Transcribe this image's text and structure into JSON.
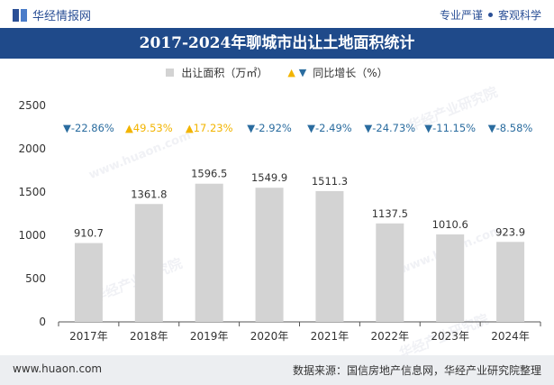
{
  "header": {
    "brand": "华经情报网",
    "tag1": "专业严谨",
    "tag2": "客观科学"
  },
  "title": "2017-2024年聊城市出让土地面积统计",
  "legend": {
    "bar_label": "出让面积（万㎡）",
    "line_label": "同比增长（%）",
    "up_symbol": "▲",
    "down_symbol": "▼"
  },
  "colors": {
    "bar": "#d3d3d3",
    "up": "#f2b400",
    "down": "#2a6c9f",
    "title_bg": "#1f4a8a"
  },
  "chart_data": {
    "type": "bar",
    "title": "2017-2024年聊城市出让土地面积统计",
    "categories": [
      "2017年",
      "2018年",
      "2019年",
      "2020年",
      "2021年",
      "2022年",
      "2023年",
      "2024年"
    ],
    "series": [
      {
        "name": "出让面积（万㎡）",
        "values": [
          910.7,
          1361.8,
          1596.5,
          1549.9,
          1511.3,
          1137.5,
          1010.6,
          923.9
        ]
      },
      {
        "name": "同比增长（%）",
        "values": [
          -22.86,
          49.53,
          17.23,
          -2.92,
          -2.49,
          -24.73,
          -11.15,
          -8.58
        ]
      }
    ],
    "value_labels": [
      "910.7",
      "1361.8",
      "1596.5",
      "1549.9",
      "1511.3",
      "1137.5",
      "1010.6",
      "923.9"
    ],
    "growth_labels": [
      "-22.86%",
      "49.53%",
      "17.23%",
      "-2.92%",
      "-2.49%",
      "-24.73%",
      "-11.15%",
      "-8.58%"
    ],
    "yticks": [
      "0",
      "500",
      "1000",
      "1500",
      "2000",
      "2500"
    ],
    "ylim": [
      0,
      2500
    ],
    "xlabel": "",
    "ylabel": ""
  },
  "watermark": "华经产业研究院",
  "watermark_url": "www.huaon.com",
  "footer": {
    "site": "www.huaon.com",
    "source": "数据来源：国信房地产信息网，华经产业研究院整理"
  }
}
